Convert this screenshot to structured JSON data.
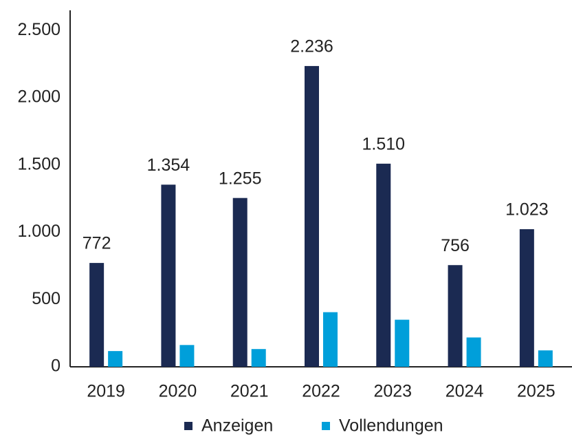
{
  "chart_data": {
    "type": "bar",
    "categories": [
      "2019",
      "2020",
      "2021",
      "2022",
      "2023",
      "2024",
      "2025"
    ],
    "series": [
      {
        "name": "Anzeigen",
        "color": "#1b2a52",
        "values": [
          772,
          1354,
          1255,
          2236,
          1510,
          756,
          1023
        ],
        "value_labels": [
          "772",
          "1.354",
          "1.255",
          "2.236",
          "1.510",
          "756",
          "1.023"
        ]
      },
      {
        "name": "Vollendungen",
        "color": "#009fda",
        "values": [
          117,
          162,
          132,
          406,
          350,
          218,
          122
        ]
      }
    ],
    "ylim": [
      0,
      2650
    ],
    "yticks": [
      0,
      500,
      {
        "value": 1000,
        "label": "1.000"
      },
      {
        "value": 1500,
        "label": "1.500"
      },
      {
        "value": 2000,
        "label": "2.000"
      },
      {
        "value": 2500,
        "label": "2.500"
      }
    ],
    "grid": false,
    "legend": "bottom"
  }
}
